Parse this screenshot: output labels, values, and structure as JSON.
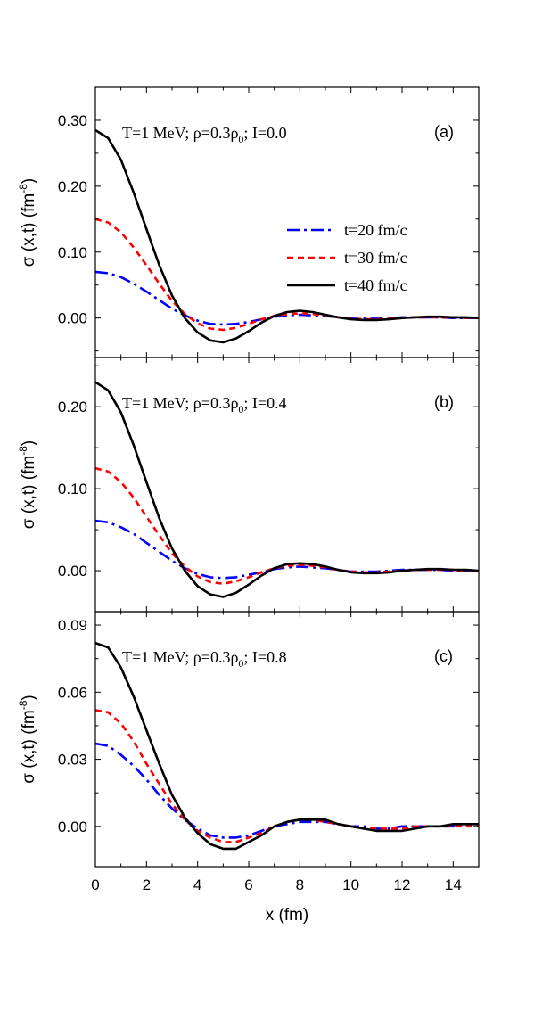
{
  "chart_data": [
    {
      "type": "line",
      "panel_label": "(a)",
      "annotation": {
        "prefix": "T=1 MeV; ρ=0.3ρ",
        "sub": "0",
        "suffix": "; I=0.0"
      },
      "ylabel": {
        "main": "σ (x,t) (fm",
        "sup": "-8",
        "close": ")"
      },
      "xlim": [
        0,
        15
      ],
      "ylim": [
        -0.06,
        0.35
      ],
      "yticks": [
        0.0,
        0.1,
        0.2,
        0.3
      ],
      "ytick_labels": [
        "0.00",
        "0.10",
        "0.20",
        "0.30"
      ],
      "series": [
        {
          "name": "t=20 fm/c",
          "color": "#0000ff",
          "dash": "dashdot",
          "x": [
            0,
            0.5,
            1,
            1.5,
            2,
            2.5,
            3,
            3.5,
            4,
            4.5,
            5,
            5.5,
            6,
            6.5,
            7,
            7.5,
            8,
            8.5,
            9,
            9.5,
            10,
            10.5,
            11,
            11.5,
            12,
            12.5,
            13,
            13.5,
            14,
            14.5,
            15
          ],
          "y": [
            0.07,
            0.068,
            0.062,
            0.052,
            0.04,
            0.027,
            0.014,
            0.004,
            -0.004,
            -0.009,
            -0.01,
            -0.009,
            -0.006,
            -0.002,
            0.002,
            0.004,
            0.005,
            0.004,
            0.003,
            0.001,
            -0.001,
            -0.001,
            -0.001,
            0,
            0.001,
            0.001,
            0.001,
            0.001,
            0,
            0,
            0
          ]
        },
        {
          "name": "t=30 fm/c",
          "color": "#ff0000",
          "dash": "dash",
          "x": [
            0,
            0.5,
            1,
            1.5,
            2,
            2.5,
            3,
            3.5,
            4,
            4.5,
            5,
            5.5,
            6,
            6.5,
            7,
            7.5,
            8,
            8.5,
            9,
            9.5,
            10,
            10.5,
            11,
            11.5,
            12,
            12.5,
            13,
            13.5,
            14,
            14.5,
            15
          ],
          "y": [
            0.15,
            0.145,
            0.13,
            0.107,
            0.08,
            0.052,
            0.026,
            0.006,
            -0.008,
            -0.016,
            -0.018,
            -0.015,
            -0.009,
            -0.002,
            0.003,
            0.006,
            0.007,
            0.006,
            0.004,
            0.001,
            -0.001,
            -0.002,
            -0.002,
            -0.001,
            0,
            0.001,
            0.001,
            0.001,
            0.001,
            0,
            0
          ]
        },
        {
          "name": "t=40 fm/c",
          "color": "#000000",
          "dash": "solid",
          "x": [
            0,
            0.5,
            1,
            1.5,
            2,
            2.5,
            3,
            3.5,
            4,
            4.5,
            5,
            5.5,
            6,
            6.5,
            7,
            7.5,
            8,
            8.5,
            9,
            9.5,
            10,
            10.5,
            11,
            11.5,
            12,
            12.5,
            13,
            13.5,
            14,
            14.5,
            15
          ],
          "y": [
            0.285,
            0.273,
            0.24,
            0.19,
            0.135,
            0.08,
            0.034,
            0,
            -0.022,
            -0.034,
            -0.037,
            -0.031,
            -0.02,
            -0.007,
            0.003,
            0.009,
            0.011,
            0.009,
            0.005,
            0.001,
            -0.002,
            -0.003,
            -0.003,
            -0.002,
            0,
            0.001,
            0.002,
            0.002,
            0.001,
            0.001,
            0
          ]
        }
      ],
      "legend": [
        "t=20 fm/c",
        "t=30 fm/c",
        "t=40 fm/c"
      ]
    },
    {
      "type": "line",
      "panel_label": "(b)",
      "annotation": {
        "prefix": "T=1 MeV; ρ=0.3ρ",
        "sub": "0",
        "suffix": "; I=0.4"
      },
      "ylabel": {
        "main": "σ (x,t) (fm",
        "sup": "-8",
        "close": ")"
      },
      "xlim": [
        0,
        15
      ],
      "ylim": [
        -0.05,
        0.26
      ],
      "yticks": [
        0.0,
        0.1,
        0.2
      ],
      "ytick_labels": [
        "0.00",
        "0.10",
        "0.20"
      ],
      "series": [
        {
          "name": "t=20 fm/c",
          "color": "#0000ff",
          "dash": "dashdot",
          "x": [
            0,
            0.5,
            1,
            1.5,
            2,
            2.5,
            3,
            3.5,
            4,
            4.5,
            5,
            5.5,
            6,
            6.5,
            7,
            7.5,
            8,
            8.5,
            9,
            9.5,
            10,
            10.5,
            11,
            11.5,
            12,
            12.5,
            13,
            13.5,
            14,
            14.5,
            15
          ],
          "y": [
            0.061,
            0.059,
            0.053,
            0.045,
            0.034,
            0.023,
            0.012,
            0.003,
            -0.004,
            -0.008,
            -0.009,
            -0.008,
            -0.005,
            -0.002,
            0.002,
            0.004,
            0.005,
            0.004,
            0.003,
            0.001,
            -0.001,
            -0.001,
            -0.001,
            0,
            0.001,
            0.001,
            0.001,
            0.001,
            0,
            0,
            0
          ]
        },
        {
          "name": "t=30 fm/c",
          "color": "#ff0000",
          "dash": "dash",
          "x": [
            0,
            0.5,
            1,
            1.5,
            2,
            2.5,
            3,
            3.5,
            4,
            4.5,
            5,
            5.5,
            6,
            6.5,
            7,
            7.5,
            8,
            8.5,
            9,
            9.5,
            10,
            10.5,
            11,
            11.5,
            12,
            12.5,
            13,
            13.5,
            14,
            14.5,
            15
          ],
          "y": [
            0.125,
            0.121,
            0.108,
            0.089,
            0.066,
            0.043,
            0.021,
            0.005,
            -0.007,
            -0.014,
            -0.016,
            -0.013,
            -0.008,
            -0.002,
            0.003,
            0.006,
            0.007,
            0.006,
            0.004,
            0.001,
            -0.001,
            -0.002,
            -0.002,
            -0.001,
            0,
            0.001,
            0.001,
            0.001,
            0.001,
            0,
            0
          ]
        },
        {
          "name": "t=40 fm/c",
          "color": "#000000",
          "dash": "solid",
          "x": [
            0,
            0.5,
            1,
            1.5,
            2,
            2.5,
            3,
            3.5,
            4,
            4.5,
            5,
            5.5,
            6,
            6.5,
            7,
            7.5,
            8,
            8.5,
            9,
            9.5,
            10,
            10.5,
            11,
            11.5,
            12,
            12.5,
            13,
            13.5,
            14,
            14.5,
            15
          ],
          "y": [
            0.23,
            0.22,
            0.193,
            0.153,
            0.108,
            0.064,
            0.027,
            0,
            -0.019,
            -0.029,
            -0.032,
            -0.027,
            -0.017,
            -0.006,
            0.003,
            0.008,
            0.009,
            0.008,
            0.005,
            0.001,
            -0.002,
            -0.003,
            -0.003,
            -0.002,
            0,
            0.001,
            0.002,
            0.002,
            0.001,
            0.001,
            0
          ]
        }
      ]
    },
    {
      "type": "line",
      "panel_label": "(c)",
      "annotation": {
        "prefix": "T=1 MeV; ρ=0.3ρ",
        "sub": "0",
        "suffix": "; I=0.8"
      },
      "ylabel": {
        "main": "σ (x,t) (fm",
        "sup": "-8",
        "close": ")"
      },
      "xlabel": "x (fm)",
      "xlim": [
        0,
        15
      ],
      "ylim": [
        -0.018,
        0.096
      ],
      "xticks": [
        0,
        2,
        4,
        6,
        8,
        10,
        12,
        14
      ],
      "xtick_labels": [
        "0",
        "2",
        "4",
        "6",
        "8",
        "10",
        "12",
        "14"
      ],
      "yticks": [
        0.0,
        0.03,
        0.06,
        0.09
      ],
      "ytick_labels": [
        "0.00",
        "0.03",
        "0.06",
        "0.09"
      ],
      "series": [
        {
          "name": "t=20 fm/c",
          "color": "#0000ff",
          "dash": "dashdot",
          "x": [
            0,
            0.5,
            1,
            1.5,
            2,
            2.5,
            3,
            3.5,
            4,
            4.5,
            5,
            5.5,
            6,
            6.5,
            7,
            7.5,
            8,
            8.5,
            9,
            9.5,
            10,
            10.5,
            11,
            11.5,
            12,
            12.5,
            13,
            13.5,
            14,
            14.5,
            15
          ],
          "y": [
            0.037,
            0.036,
            0.032,
            0.027,
            0.021,
            0.014,
            0.008,
            0.003,
            -0.001,
            -0.004,
            -0.005,
            -0.005,
            -0.004,
            -0.002,
            0,
            0.001,
            0.002,
            0.002,
            0.002,
            0.001,
            0,
            0,
            -0.001,
            -0.001,
            0,
            0,
            0,
            0,
            0,
            0.001,
            0.001
          ]
        },
        {
          "name": "t=30 fm/c",
          "color": "#ff0000",
          "dash": "dash",
          "x": [
            0,
            0.5,
            1,
            1.5,
            2,
            2.5,
            3,
            3.5,
            4,
            4.5,
            5,
            5.5,
            6,
            6.5,
            7,
            7.5,
            8,
            8.5,
            9,
            9.5,
            10,
            10.5,
            11,
            11.5,
            12,
            12.5,
            13,
            13.5,
            14,
            14.5,
            15
          ],
          "y": [
            0.052,
            0.051,
            0.046,
            0.038,
            0.028,
            0.019,
            0.01,
            0.003,
            -0.002,
            -0.005,
            -0.007,
            -0.007,
            -0.005,
            -0.003,
            0,
            0.002,
            0.003,
            0.003,
            0.002,
            0.001,
            0,
            -0.001,
            -0.001,
            -0.001,
            -0.001,
            0,
            0,
            0,
            0,
            0,
            0
          ]
        },
        {
          "name": "t=40 fm/c",
          "color": "#000000",
          "dash": "solid",
          "x": [
            0,
            0.5,
            1,
            1.5,
            2,
            2.5,
            3,
            3.5,
            4,
            4.5,
            5,
            5.5,
            6,
            6.5,
            7,
            7.5,
            8,
            8.5,
            9,
            9.5,
            10,
            10.5,
            11,
            11.5,
            12,
            12.5,
            13,
            13.5,
            14,
            14.5,
            15
          ],
          "y": [
            0.082,
            0.08,
            0.071,
            0.058,
            0.043,
            0.028,
            0.014,
            0.004,
            -0.003,
            -0.008,
            -0.01,
            -0.01,
            -0.007,
            -0.004,
            0,
            0.002,
            0.003,
            0.003,
            0.003,
            0.001,
            0,
            -0.001,
            -0.002,
            -0.002,
            -0.002,
            -0.001,
            0,
            0,
            0.001,
            0.001,
            0.001
          ]
        }
      ]
    }
  ]
}
